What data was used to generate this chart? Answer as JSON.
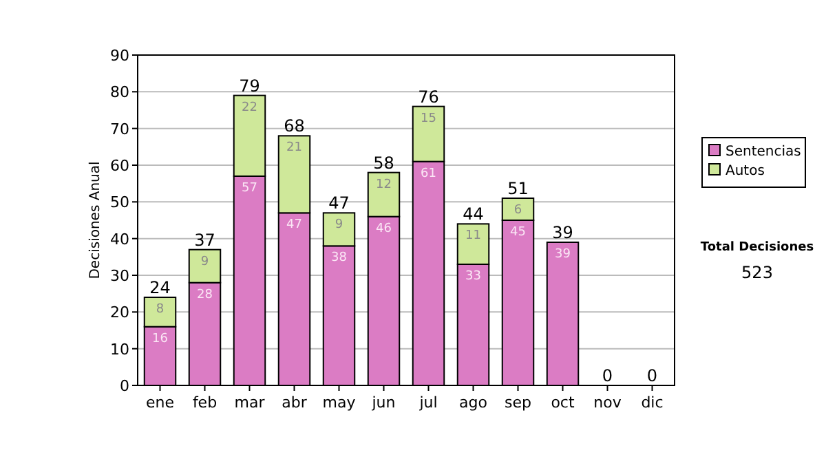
{
  "chart_data": {
    "type": "bar",
    "stacked": true,
    "ylabel": "Decisiones Anual",
    "categories": [
      "ene",
      "feb",
      "mar",
      "abr",
      "may",
      "jun",
      "jul",
      "ago",
      "sep",
      "oct",
      "nov",
      "dic"
    ],
    "series": [
      {
        "name": "Sentencias",
        "color": "#db7cc4",
        "values": [
          16,
          28,
          57,
          47,
          38,
          46,
          61,
          33,
          45,
          39,
          0,
          0
        ],
        "value_labels": [
          "16",
          "28",
          "57",
          "47",
          "38",
          "46",
          "61",
          "33",
          "45",
          "39",
          null,
          null
        ]
      },
      {
        "name": "Autos",
        "color": "#cfe89a",
        "values": [
          8,
          9,
          22,
          21,
          9,
          12,
          15,
          11,
          6,
          0,
          0,
          0
        ],
        "value_labels": [
          "8",
          "9",
          "22",
          "21",
          "9",
          "12",
          "15",
          "11",
          "6",
          null,
          null,
          null
        ]
      }
    ],
    "totals": [
      "24",
      "37",
      "79",
      "68",
      "47",
      "58",
      "76",
      "44",
      "51",
      "39",
      "0",
      "0"
    ],
    "ylim": [
      0,
      90
    ],
    "yticks": [
      0,
      10,
      20,
      30,
      40,
      50,
      60,
      70,
      80,
      90
    ],
    "grid": "y",
    "legend": "right",
    "annotations": [
      "Total Decisiones",
      "523"
    ]
  }
}
